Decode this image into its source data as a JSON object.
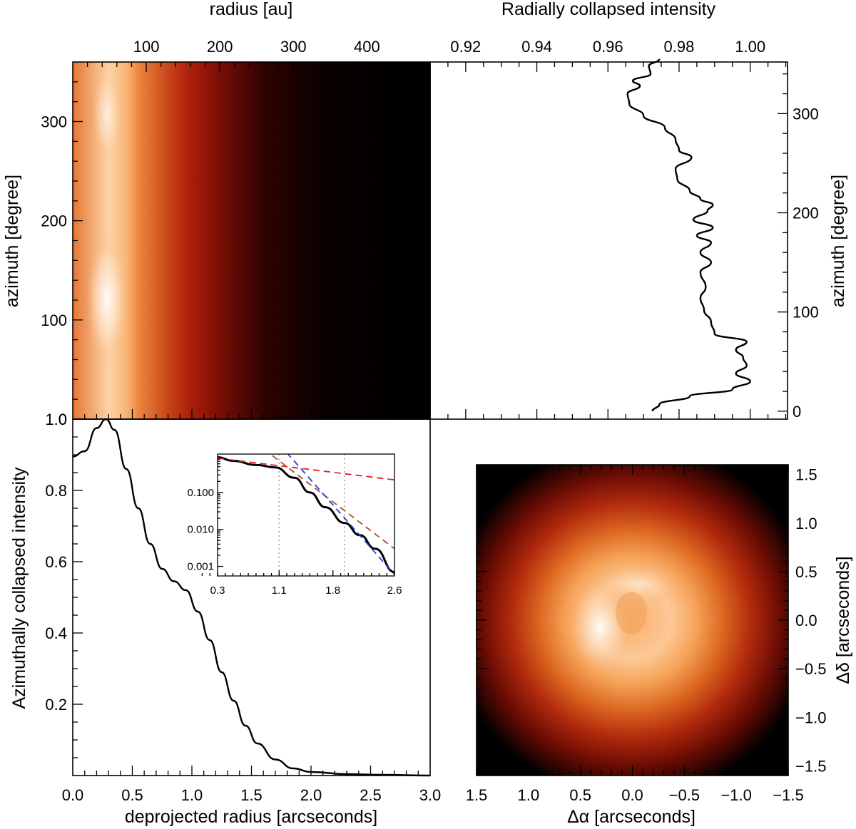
{
  "chart_data": [
    {
      "id": "polar_map",
      "type": "heatmap",
      "description_axes": "azimuth vs radius",
      "xlabel_top": "radius [au]",
      "ylabel": "azimuth [degree]",
      "xticks_top": [
        100,
        200,
        300,
        400
      ],
      "x_top_range": [
        0,
        486
      ],
      "yticks": [
        0,
        100,
        200,
        300
      ],
      "ylim": [
        0,
        360
      ],
      "x_range_arcsec": [
        0,
        3.0
      ],
      "radial_profile": [
        {
          "r": 0.0,
          "level": 0.62
        },
        {
          "r": 0.3,
          "level": 0.92
        },
        {
          "r": 0.45,
          "level": 0.82
        },
        {
          "r": 0.55,
          "level": 0.66
        },
        {
          "r": 0.8,
          "level": 0.5
        },
        {
          "r": 1.0,
          "level": 0.4
        },
        {
          "r": 1.25,
          "level": 0.28
        },
        {
          "r": 1.6,
          "level": 0.12
        },
        {
          "r": 2.1,
          "level": 0.02
        },
        {
          "r": 3.0,
          "level": 0.0
        }
      ]
    },
    {
      "id": "radial_collapse",
      "type": "line",
      "title": "Radially collapsed intensity",
      "ylabel": "azimuth [degree]",
      "xticks": [
        0.92,
        0.94,
        0.96,
        0.98,
        1.0
      ],
      "xtick_labels": [
        "0.92",
        "0.94",
        "0.96",
        "0.98",
        "1.00"
      ],
      "xlim": [
        0.91,
        1.0105
      ],
      "yticks": [
        0,
        100,
        200,
        300
      ],
      "ylim": [
        -8,
        352
      ],
      "points": [
        [
          0.9725,
          0
        ],
        [
          0.9745,
          7
        ],
        [
          0.983,
          15
        ],
        [
          0.995,
          22
        ],
        [
          1.0,
          30
        ],
        [
          0.996,
          38
        ],
        [
          0.999,
          46
        ],
        [
          0.998,
          54
        ],
        [
          0.996,
          62
        ],
        [
          0.999,
          70
        ],
        [
          0.99,
          78
        ],
        [
          0.989,
          90
        ],
        [
          0.987,
          102
        ],
        [
          0.986,
          114
        ],
        [
          0.9875,
          125
        ],
        [
          0.986,
          140
        ],
        [
          0.989,
          150
        ],
        [
          0.986,
          160
        ],
        [
          0.989,
          170
        ],
        [
          0.985,
          177
        ],
        [
          0.9895,
          185
        ],
        [
          0.984,
          193
        ],
        [
          0.988,
          202
        ],
        [
          0.9895,
          208
        ],
        [
          0.986,
          214
        ],
        [
          0.983,
          222
        ],
        [
          0.9795,
          234
        ],
        [
          0.979,
          244
        ],
        [
          0.9835,
          256
        ],
        [
          0.98,
          263
        ],
        [
          0.979,
          274
        ],
        [
          0.976,
          286
        ],
        [
          0.97,
          298
        ],
        [
          0.966,
          310
        ],
        [
          0.9655,
          320
        ],
        [
          0.969,
          328
        ],
        [
          0.967,
          333
        ],
        [
          0.972,
          340
        ],
        [
          0.9715,
          348
        ],
        [
          0.9745,
          355
        ]
      ]
    },
    {
      "id": "azimuthal_collapse",
      "type": "line",
      "xlabel": "deprojected radius [arcseconds]",
      "ylabel": "Azimuthally collapsed intensity",
      "xticks": [
        0.0,
        0.5,
        1.0,
        1.5,
        2.0,
        2.5,
        3.0
      ],
      "xtick_labels": [
        "0.0",
        "0.5",
        "1.0",
        "1.5",
        "2.0",
        "2.5",
        "3.0"
      ],
      "xlim": [
        0,
        3.0
      ],
      "yticks": [
        0.2,
        0.4,
        0.6,
        0.8,
        1.0
      ],
      "ytick_labels": [
        "0.2",
        "0.4",
        "0.6",
        "0.8",
        "1.0"
      ],
      "ylim": [
        0,
        1.0
      ],
      "points": [
        [
          0.0,
          0.895
        ],
        [
          0.1,
          0.91
        ],
        [
          0.2,
          0.975
        ],
        [
          0.28,
          1.0
        ],
        [
          0.35,
          0.97
        ],
        [
          0.45,
          0.86
        ],
        [
          0.55,
          0.75
        ],
        [
          0.65,
          0.65
        ],
        [
          0.75,
          0.58
        ],
        [
          0.85,
          0.545
        ],
        [
          0.95,
          0.52
        ],
        [
          1.05,
          0.46
        ],
        [
          1.15,
          0.38
        ],
        [
          1.25,
          0.29
        ],
        [
          1.35,
          0.21
        ],
        [
          1.45,
          0.14
        ],
        [
          1.55,
          0.09
        ],
        [
          1.7,
          0.045
        ],
        [
          1.85,
          0.02
        ],
        [
          2.0,
          0.01
        ],
        [
          2.3,
          0.004
        ],
        [
          2.6,
          0.002
        ],
        [
          3.0,
          0.0
        ]
      ],
      "inset": {
        "type": "line",
        "scale_y": "log",
        "xticks": [
          0.3,
          1.1,
          1.8,
          2.6
        ],
        "xtick_labels": [
          "0.3",
          "1.1",
          "1.8",
          "2.6"
        ],
        "xlim": [
          0.3,
          2.6
        ],
        "yticks": [
          0.001,
          0.01,
          0.1
        ],
        "ytick_labels": [
          "0.001",
          "0.010",
          "0.100"
        ],
        "ylim": [
          0.00055,
          1.1
        ],
        "vlines": [
          1.1,
          1.95
        ],
        "series": [
          {
            "name": "profile",
            "color": "#000000",
            "points": [
              [
                0.3,
                0.9
              ],
              [
                0.5,
                0.72
              ],
              [
                0.8,
                0.56
              ],
              [
                1.05,
                0.48
              ],
              [
                1.3,
                0.25
              ],
              [
                1.5,
                0.1
              ],
              [
                1.7,
                0.04
              ],
              [
                1.95,
                0.015
              ],
              [
                2.15,
                0.007
              ],
              [
                2.35,
                0.003
              ],
              [
                2.6,
                0.0007
              ]
            ]
          },
          {
            "name": "fit-inner",
            "color": "#e02020",
            "dashed": true,
            "points": [
              [
                0.3,
                0.85
              ],
              [
                2.6,
                0.22
              ]
            ]
          },
          {
            "name": "fit-middle",
            "color": "#a0522d",
            "dashed": true,
            "points": [
              [
                0.9,
                1.5
              ],
              [
                2.6,
                0.003
              ]
            ]
          },
          {
            "name": "fit-outer",
            "color": "#2040e0",
            "dashed": true,
            "points": [
              [
                1.2,
                1.2
              ],
              [
                2.6,
                0.0006
              ]
            ]
          }
        ]
      }
    },
    {
      "id": "sky_image",
      "type": "heatmap",
      "xlabel": "Δα  [arcseconds]",
      "ylabel": "Δδ  [arcseconds]",
      "xticks": [
        1.5,
        1.0,
        0.5,
        0.0,
        -0.5,
        -1.0,
        -1.5
      ],
      "xtick_labels": [
        "1.5",
        "1.0",
        "0.5",
        "0.0",
        "−0.5",
        "−1.0",
        "−1.5"
      ],
      "xlim": [
        1.5,
        -1.5
      ],
      "yticks": [
        1.5,
        1.0,
        0.5,
        0.0,
        -0.5,
        -1.0,
        -1.5
      ],
      "ytick_labels": [
        "1.5",
        "1.0",
        "0.5",
        "0.0",
        "−0.5",
        "−1.0",
        "−1.5"
      ],
      "ylim": [
        -1.6,
        1.6
      ],
      "ring_radius_arcsec": 0.3,
      "bright_side": "east"
    }
  ]
}
